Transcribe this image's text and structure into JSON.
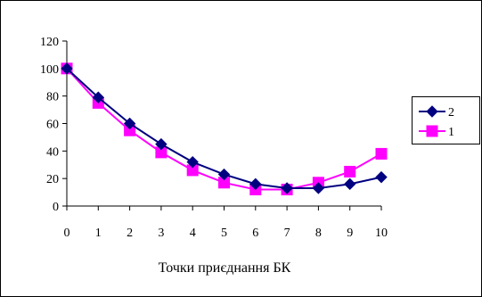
{
  "chart_data": {
    "type": "line",
    "title": "",
    "xlabel": "Точки приєднання БК",
    "ylabel": "",
    "x": [
      0,
      1,
      2,
      3,
      4,
      5,
      6,
      7,
      8,
      9,
      10
    ],
    "ylim": [
      0,
      120
    ],
    "y_ticks": [
      0,
      20,
      40,
      60,
      80,
      100,
      120
    ],
    "grid": false,
    "legend_position": "right",
    "series": [
      {
        "name": "2",
        "color": "#000080",
        "marker": "diamond",
        "values": [
          100,
          79,
          60,
          45,
          32,
          23,
          16,
          13,
          13,
          16,
          21
        ]
      },
      {
        "name": "1",
        "color": "#ff00ff",
        "marker": "square",
        "values": [
          100,
          75,
          55,
          39,
          26,
          17,
          12,
          12,
          17,
          25,
          38
        ]
      }
    ]
  }
}
